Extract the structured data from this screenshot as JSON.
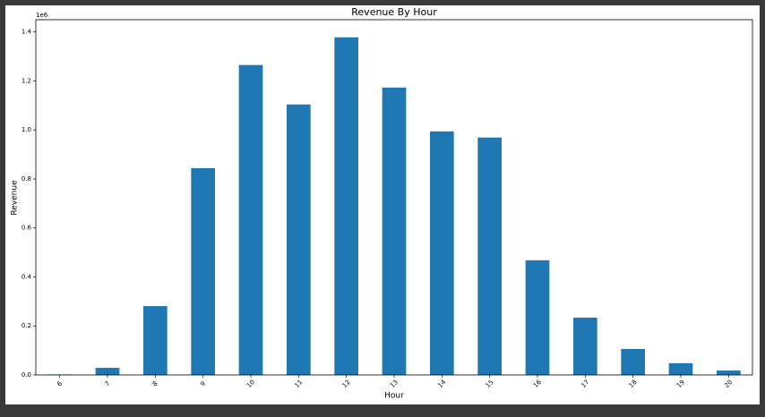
{
  "chart_data": {
    "type": "bar",
    "title": "Revenue By Hour",
    "xlabel": "Hour",
    "ylabel": "Revenue",
    "offset_label": "1e6",
    "categories": [
      "6",
      "7",
      "8",
      "9",
      "10",
      "11",
      "12",
      "13",
      "14",
      "15",
      "16",
      "17",
      "18",
      "19",
      "20"
    ],
    "values": [
      0.002,
      0.029,
      0.281,
      0.844,
      1.265,
      1.104,
      1.378,
      1.173,
      0.994,
      0.969,
      0.468,
      0.234,
      0.106,
      0.048,
      0.018
    ],
    "color": "#1f77b4",
    "ylim": [
      0,
      1.45
    ],
    "yticks": [
      {
        "value": 0,
        "label": "0.0"
      },
      0.2,
      0.4,
      0.6,
      0.8,
      {
        "value": 1,
        "label": "1.0"
      },
      1.2,
      1.4
    ],
    "grid": false
  }
}
